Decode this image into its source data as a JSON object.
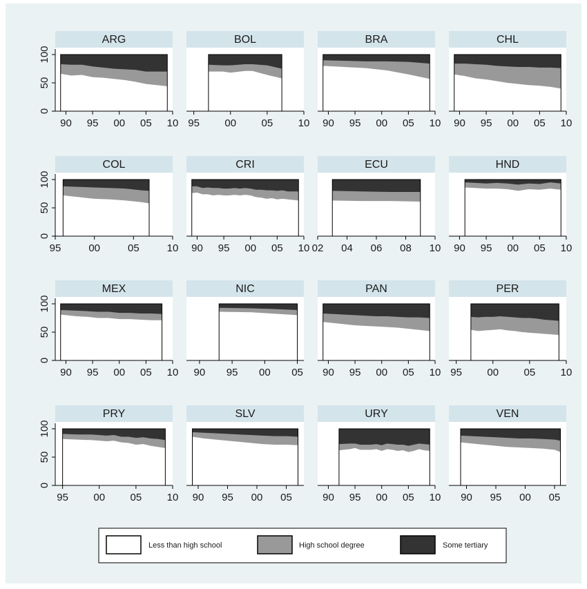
{
  "chart_data": {
    "type": "area",
    "layout": "small-multiples",
    "stacked": true,
    "ylim": [
      0,
      100
    ],
    "yticks": [
      0,
      50,
      100
    ],
    "legend": {
      "position": "bottom",
      "entries": [
        {
          "label": "Less than high school",
          "color": "#ffffff"
        },
        {
          "label": "High school degree",
          "color": "#999999"
        },
        {
          "label": "Some tertiary",
          "color": "#333333"
        }
      ]
    },
    "panels": [
      {
        "title": "ARG",
        "xlim": [
          1988,
          2010
        ],
        "xticks": [
          1990,
          1995,
          2000,
          2005,
          2010
        ],
        "xticklabels": [
          "90",
          "95",
          "00",
          "05",
          "10"
        ],
        "x": [
          1989,
          1991,
          1993,
          1995,
          1997,
          1999,
          2001,
          2003,
          2005,
          2007,
          2009
        ],
        "less_than_hs": [
          66,
          63,
          64,
          60,
          59,
          57,
          55,
          52,
          48,
          46,
          44
        ],
        "hs_or_less": [
          83,
          82,
          82,
          79,
          77,
          75,
          74,
          73,
          70,
          70,
          70
        ]
      },
      {
        "title": "BOL",
        "xlim": [
          1994,
          2010
        ],
        "xticks": [
          1995,
          2000,
          2005,
          2010
        ],
        "xticklabels": [
          "95",
          "00",
          "05",
          "10"
        ],
        "x": [
          1997,
          1999,
          2000,
          2002,
          2003,
          2005,
          2007
        ],
        "less_than_hs": [
          70,
          70,
          68,
          71,
          71,
          64,
          58
        ],
        "hs_or_less": [
          82,
          81,
          81,
          83,
          83,
          81,
          75
        ]
      },
      {
        "title": "BRA",
        "xlim": [
          1988,
          2010
        ],
        "xticks": [
          1990,
          1995,
          2000,
          2005,
          2010
        ],
        "xticklabels": [
          "90",
          "95",
          "00",
          "05",
          "10"
        ],
        "x": [
          1989,
          1993,
          1997,
          2001,
          2005,
          2009
        ],
        "less_than_hs": [
          80,
          78,
          76,
          72,
          65,
          57
        ],
        "hs_or_less": [
          90,
          89,
          88,
          88,
          87,
          84
        ]
      },
      {
        "title": "CHL",
        "xlim": [
          1988,
          2010
        ],
        "xticks": [
          1990,
          1995,
          2000,
          2005,
          2010
        ],
        "xticklabels": [
          "90",
          "95",
          "00",
          "05",
          "10"
        ],
        "x": [
          1989,
          1991,
          1993,
          1995,
          1997,
          1999,
          2001,
          2003,
          2005,
          2007,
          2009
        ],
        "less_than_hs": [
          65,
          62,
          58,
          56,
          53,
          50,
          48,
          46,
          45,
          43,
          40
        ],
        "hs_or_less": [
          84,
          84,
          83,
          82,
          80,
          79,
          78,
          78,
          77,
          77,
          76
        ]
      },
      {
        "title": "COL",
        "xlim": [
          1995,
          2010
        ],
        "xticks": [
          1995,
          2000,
          2005,
          2010
        ],
        "xticklabels": [
          "95",
          "00",
          "05",
          "10"
        ],
        "x": [
          1996,
          1998,
          2000,
          2002,
          2004,
          2006,
          2007
        ],
        "less_than_hs": [
          72,
          69,
          66,
          65,
          63,
          60,
          58
        ],
        "hs_or_less": [
          88,
          87,
          86,
          85,
          84,
          81,
          80
        ]
      },
      {
        "title": "CRI",
        "xlim": [
          1988,
          2010
        ],
        "xticks": [
          1990,
          1995,
          2000,
          2005,
          2010
        ],
        "xticklabels": [
          "90",
          "95",
          "00",
          "05",
          "10"
        ],
        "x": [
          1989,
          1990,
          1991,
          1992,
          1993,
          1994,
          1995,
          1996,
          1997,
          1998,
          1999,
          2000,
          2001,
          2002,
          2003,
          2004,
          2005,
          2006,
          2007,
          2008,
          2009
        ],
        "less_than_hs": [
          76,
          77,
          74,
          74,
          72,
          73,
          72,
          72,
          73,
          72,
          73,
          72,
          69,
          68,
          66,
          67,
          65,
          66,
          65,
          64,
          63
        ],
        "hs_or_less": [
          88,
          88,
          85,
          86,
          85,
          85,
          84,
          84,
          85,
          84,
          85,
          84,
          82,
          82,
          81,
          81,
          80,
          81,
          79,
          79,
          79
        ]
      },
      {
        "title": "ECU",
        "xlim": [
          2002,
          2010
        ],
        "xticks": [
          2002,
          2004,
          2006,
          2008,
          2010
        ],
        "xticklabels": [
          "02",
          "04",
          "06",
          "08",
          "10"
        ],
        "x": [
          2003,
          2005,
          2007,
          2009
        ],
        "less_than_hs": [
          63,
          62,
          62,
          61
        ],
        "hs_or_less": [
          80,
          79,
          78,
          78
        ]
      },
      {
        "title": "HND",
        "xlim": [
          1988,
          2010
        ],
        "xticks": [
          1990,
          1995,
          2000,
          2005,
          2010
        ],
        "xticklabels": [
          "90",
          "95",
          "00",
          "05",
          "10"
        ],
        "x": [
          1991,
          1993,
          1995,
          1997,
          1999,
          2001,
          2003,
          2005,
          2007,
          2009
        ],
        "less_than_hs": [
          86,
          85,
          84,
          84,
          83,
          80,
          83,
          82,
          84,
          82
        ],
        "hs_or_less": [
          95,
          94,
          93,
          94,
          93,
          91,
          93,
          92,
          95,
          93
        ]
      },
      {
        "title": "MEX",
        "xlim": [
          1988,
          2010
        ],
        "xticks": [
          1990,
          1995,
          2000,
          2005,
          2010
        ],
        "xticklabels": [
          "90",
          "95",
          "00",
          "05",
          "10"
        ],
        "x": [
          1989,
          1992,
          1994,
          1996,
          1998,
          2000,
          2002,
          2004,
          2006,
          2008
        ],
        "less_than_hs": [
          81,
          78,
          77,
          75,
          75,
          73,
          73,
          72,
          71,
          71
        ],
        "hs_or_less": [
          89,
          88,
          87,
          86,
          86,
          84,
          84,
          83,
          83,
          82
        ]
      },
      {
        "title": "NIC",
        "xlim": [
          1988,
          2006
        ],
        "xticks": [
          1990,
          1995,
          2000,
          2005
        ],
        "xticklabels": [
          "90",
          "95",
          "00",
          "05"
        ],
        "x": [
          1993,
          1998,
          2001,
          2005
        ],
        "less_than_hs": [
          86,
          85,
          83,
          80
        ],
        "hs_or_less": [
          93,
          92,
          91,
          89
        ]
      },
      {
        "title": "PAN",
        "xlim": [
          1988,
          2010
        ],
        "xticks": [
          1990,
          1995,
          2000,
          2005,
          2010
        ],
        "xticklabels": [
          "90",
          "95",
          "00",
          "05",
          "10"
        ],
        "x": [
          1989,
          1991,
          1993,
          1995,
          1997,
          1999,
          2001,
          2003,
          2005,
          2007,
          2009
        ],
        "less_than_hs": [
          68,
          66,
          64,
          62,
          61,
          60,
          59,
          58,
          56,
          54,
          52
        ],
        "hs_or_less": [
          83,
          82,
          81,
          80,
          79,
          78,
          78,
          77,
          76,
          76,
          75
        ]
      },
      {
        "title": "PER",
        "xlim": [
          1994,
          2010
        ],
        "xticks": [
          1995,
          2000,
          2005,
          2010
        ],
        "xticklabels": [
          "95",
          "00",
          "05",
          "10"
        ],
        "x": [
          1997,
          1998,
          1999,
          2000,
          2001,
          2002,
          2003,
          2004,
          2005,
          2006,
          2007,
          2008,
          2009
        ],
        "less_than_hs": [
          54,
          52,
          53,
          54,
          55,
          53,
          52,
          50,
          49,
          48,
          47,
          46,
          45
        ],
        "hs_or_less": [
          77,
          76,
          77,
          77,
          78,
          77,
          76,
          75,
          75,
          74,
          72,
          71,
          70
        ]
      },
      {
        "title": "PRY",
        "xlim": [
          1994,
          2010
        ],
        "xticks": [
          1995,
          2000,
          2005,
          2010
        ],
        "xticklabels": [
          "95",
          "00",
          "05",
          "10"
        ],
        "x": [
          1995,
          1997,
          1999,
          2001,
          2002,
          2003,
          2004,
          2005,
          2006,
          2007,
          2008,
          2009
        ],
        "less_than_hs": [
          82,
          81,
          80,
          78,
          79,
          76,
          75,
          72,
          73,
          70,
          68,
          66
        ],
        "hs_or_less": [
          91,
          90,
          90,
          88,
          89,
          86,
          86,
          84,
          85,
          83,
          82,
          80
        ]
      },
      {
        "title": "SLV",
        "xlim": [
          1988,
          2008
        ],
        "xticks": [
          1990,
          1995,
          2000,
          2005
        ],
        "xticklabels": [
          "90",
          "95",
          "00",
          "05"
        ],
        "x": [
          1989,
          1991,
          1993,
          1995,
          1997,
          1999,
          2001,
          2003,
          2005,
          2007
        ],
        "less_than_hs": [
          86,
          83,
          81,
          79,
          77,
          75,
          73,
          72,
          72,
          71
        ],
        "hs_or_less": [
          94,
          93,
          92,
          91,
          90,
          89,
          88,
          87,
          87,
          86
        ]
      },
      {
        "title": "URY",
        "xlim": [
          1988,
          2010
        ],
        "xticks": [
          1990,
          1995,
          2000,
          2005,
          2010
        ],
        "xticklabels": [
          "90",
          "95",
          "00",
          "05",
          "10"
        ],
        "x": [
          1992,
          1994,
          1995,
          1996,
          1998,
          1999,
          2000,
          2001,
          2002,
          2003,
          2004,
          2005,
          2006,
          2007,
          2008,
          2009
        ],
        "less_than_hs": [
          62,
          64,
          66,
          63,
          63,
          64,
          61,
          64,
          63,
          61,
          62,
          59,
          61,
          64,
          62,
          61
        ],
        "hs_or_less": [
          73,
          74,
          74,
          72,
          72,
          73,
          71,
          74,
          73,
          72,
          72,
          70,
          72,
          74,
          73,
          72
        ]
      },
      {
        "title": "VEN",
        "xlim": [
          1987,
          2007
        ],
        "xticks": [
          1990,
          1995,
          2000,
          2005
        ],
        "xticklabels": [
          "90",
          "95",
          "00",
          "05"
        ],
        "x": [
          1989,
          1991,
          1993,
          1995,
          1997,
          1999,
          2001,
          2003,
          2005,
          2006
        ],
        "less_than_hs": [
          76,
          74,
          72,
          70,
          68,
          67,
          66,
          65,
          63,
          59
        ],
        "hs_or_less": [
          88,
          87,
          86,
          85,
          84,
          83,
          83,
          82,
          81,
          79
        ]
      }
    ]
  }
}
